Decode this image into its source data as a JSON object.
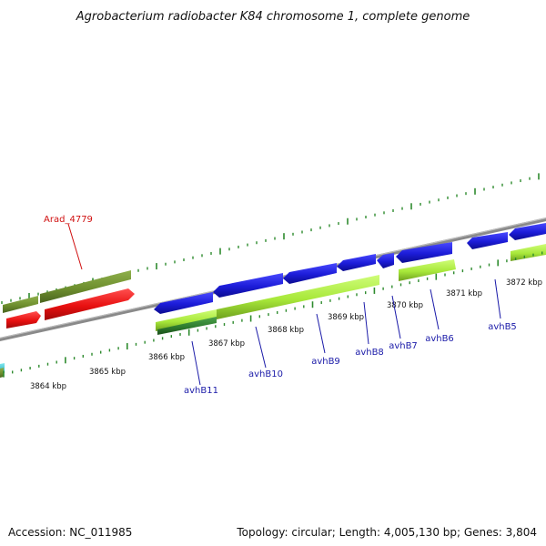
{
  "title": "Agrobacterium radiobacter K84 chromosome 1, complete genome",
  "footer": {
    "accession": "Accession: NC_011985",
    "topology": "Topology: circular; Length: 4,005,130 bp; Genes: 3,804"
  },
  "colors": {
    "backbone": "#8a8a8a",
    "tick": "#2e8b2e",
    "blue_gene": "#1c1cd8",
    "lime_gene": "#a8e83a",
    "olive_gene": "#6e8f2e",
    "red_gene": "#e81010",
    "dark_green_gene": "#2e7d2e",
    "cyan_gene": "#38c8d8",
    "label_blue": "#1a1aa8",
    "label_red": "#d01010"
  },
  "ticks": [
    {
      "label": "3864 kbp"
    },
    {
      "label": "3865 kbp"
    },
    {
      "label": "3866 kbp"
    },
    {
      "label": "3867 kbp"
    },
    {
      "label": "3868 kbp"
    },
    {
      "label": "3869 kbp"
    },
    {
      "label": "3870 kbp"
    },
    {
      "label": "3871 kbp"
    },
    {
      "label": "3872 kbp"
    }
  ],
  "gene_labels": [
    {
      "name": "Arad_4779",
      "color": "#d01010"
    },
    {
      "name": "avhB11",
      "color": "#1a1aa8"
    },
    {
      "name": "avhB10",
      "color": "#1a1aa8"
    },
    {
      "name": "avhB9",
      "color": "#1a1aa8"
    },
    {
      "name": "avhB8",
      "color": "#1a1aa8"
    },
    {
      "name": "avhB7",
      "color": "#1a1aa8"
    },
    {
      "name": "avhB6",
      "color": "#1a1aa8"
    },
    {
      "name": "avhB5",
      "color": "#1a1aa8"
    }
  ]
}
